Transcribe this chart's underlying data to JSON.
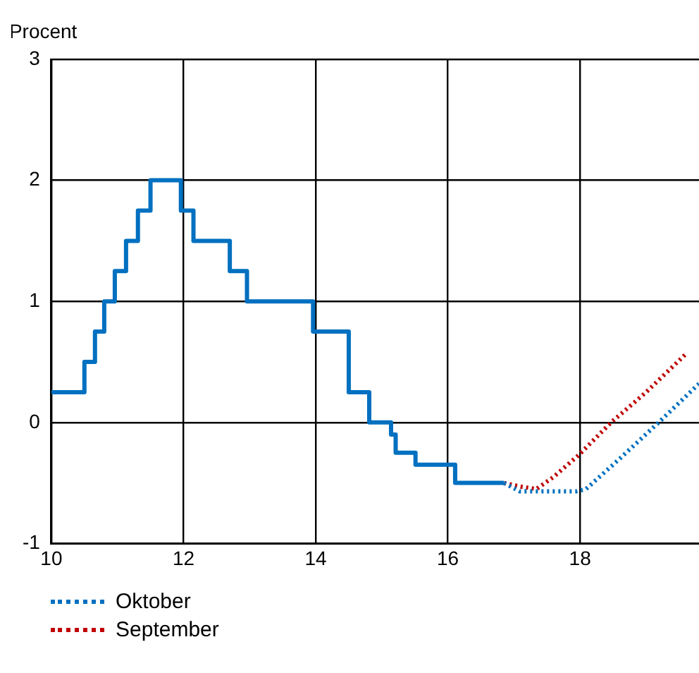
{
  "chart_data": {
    "type": "step",
    "ylabel": "Procent",
    "xlim": [
      10,
      19.8
    ],
    "xticks": [
      10,
      12,
      14,
      16,
      18
    ],
    "ylim": [
      -1,
      3
    ],
    "yticks": [
      -1,
      0,
      1,
      2,
      3
    ],
    "grid": true,
    "legend": "bottom left",
    "marker": "none",
    "series": [
      {
        "type": "step",
        "color": "#0070c0",
        "line_style": "solid",
        "x": [
          10,
          10.5,
          10.66,
          10.8,
          10.96,
          11.13,
          11.31,
          11.5,
          11.96,
          12.15,
          12.7,
          12.96,
          13.96,
          14.5,
          14.81,
          15.14,
          15.21,
          15.51,
          16.11,
          16.85
        ],
        "values": [
          0.25,
          0.5,
          0.75,
          1,
          1.25,
          1.5,
          1.75,
          2,
          1.75,
          1.5,
          1.25,
          1,
          0.75,
          0.25,
          0,
          -0.1,
          -0.25,
          -0.35,
          -0.5,
          -0.5
        ]
      },
      {
        "type": "line",
        "name": "Oktober",
        "color": "#0070c0",
        "line_style": "dotted",
        "x": [
          16.85,
          17.09,
          17.94,
          18.09,
          18.6,
          19.19,
          19.8
        ],
        "values": [
          -0.5,
          -0.57,
          -0.57,
          -0.55,
          -0.3,
          0,
          0.32
        ]
      },
      {
        "type": "line",
        "name": "September",
        "color": "#c00000",
        "line_style": "dotted",
        "x": [
          16.85,
          17.1,
          17.34,
          17.6,
          17.98,
          18.47,
          19.0,
          19.61
        ],
        "values": [
          -0.5,
          -0.53,
          -0.55,
          -0.45,
          -0.27,
          0,
          0.25,
          0.57
        ]
      }
    ]
  }
}
